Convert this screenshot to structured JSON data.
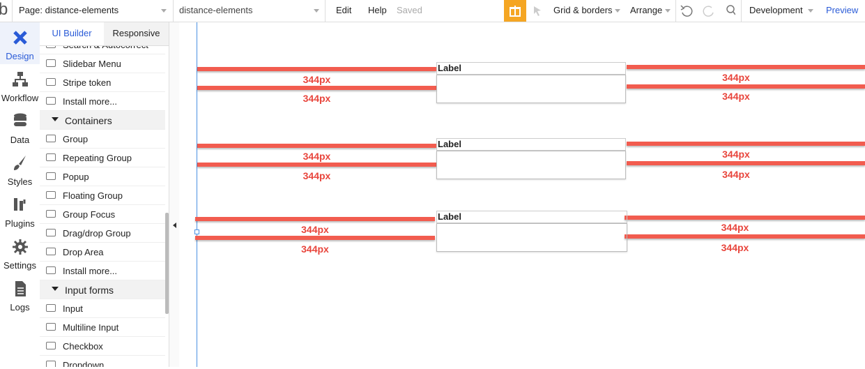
{
  "topbar": {
    "logo": "b",
    "page_selector": "Page: distance-elements",
    "element_selector": "distance-elements",
    "menu": [
      "Edit",
      "Help"
    ],
    "status": "Saved",
    "grid": "Grid & borders",
    "arrange": "Arrange",
    "environment": "Development",
    "preview": "Preview"
  },
  "nav": [
    "Design",
    "Workflow",
    "Data",
    "Styles",
    "Plugins",
    "Settings",
    "Logs"
  ],
  "panel": {
    "tabs": [
      "UI Builder",
      "Responsive"
    ],
    "items": [
      {
        "label": "Search & Autocorrect"
      },
      {
        "label": "Slidebar Menu"
      },
      {
        "label": "Stripe token"
      },
      {
        "label": "Install more..."
      },
      {
        "label": "Containers",
        "section": true
      },
      {
        "label": "Group"
      },
      {
        "label": "Repeating Group"
      },
      {
        "label": "Popup"
      },
      {
        "label": "Floating Group"
      },
      {
        "label": "Group Focus"
      },
      {
        "label": "Drag/drop Group"
      },
      {
        "label": "Drop Area"
      },
      {
        "label": "Install more..."
      },
      {
        "label": "Input forms",
        "section": true
      },
      {
        "label": "Input"
      },
      {
        "label": "Multiline Input"
      },
      {
        "label": "Checkbox"
      },
      {
        "label": "Dropdown"
      }
    ]
  },
  "canvas": {
    "groups": [
      {
        "label": "Label",
        "distances": [
          "344px",
          "344px",
          "344px",
          "344px"
        ]
      },
      {
        "label": "Label",
        "distances": [
          "344px",
          "344px",
          "344px",
          "344px"
        ]
      },
      {
        "label": "Label",
        "distances": [
          "344px",
          "344px",
          "344px",
          "344px"
        ]
      }
    ]
  }
}
